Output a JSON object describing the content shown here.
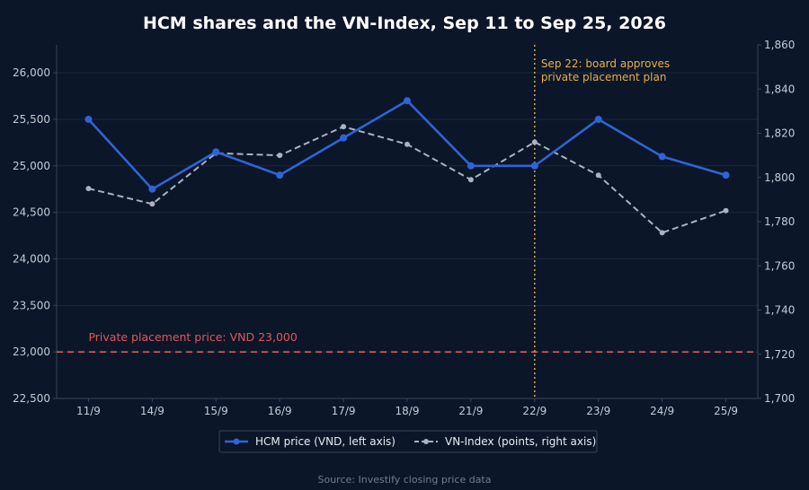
{
  "chart_data": {
    "type": "line",
    "title": "HCM shares and the VN-Index, Sep 11 to Sep 25, 2026",
    "categories": [
      "11/9",
      "14/9",
      "15/9",
      "16/9",
      "17/9",
      "18/9",
      "21/9",
      "22/9",
      "23/9",
      "24/9",
      "25/9"
    ],
    "y_left": {
      "min": 22500,
      "max": 26300,
      "ticks": [
        22500,
        23000,
        23500,
        24000,
        24500,
        25000,
        25500,
        26000
      ],
      "tick_labels": [
        "22,500",
        "23,000",
        "23,500",
        "24,000",
        "24,500",
        "25,000",
        "25,500",
        "26,000"
      ]
    },
    "y_right": {
      "min": 1700,
      "max": 1860,
      "ticks": [
        1700,
        1720,
        1740,
        1760,
        1780,
        1800,
        1820,
        1840,
        1860
      ],
      "tick_labels": [
        "1,700",
        "1,720",
        "1,740",
        "1,760",
        "1,780",
        "1,800",
        "1,820",
        "1,840",
        "1,860"
      ]
    },
    "series": [
      {
        "name": "HCM price (VND, left axis)",
        "axis": "left",
        "color": "#2f63d8",
        "style": "solid",
        "values": [
          25500,
          24750,
          25150,
          24900,
          25300,
          25700,
          25000,
          25000,
          25500,
          25100,
          24900
        ]
      },
      {
        "name": "VN-Index (points, right axis)",
        "axis": "right",
        "color": "#a9b3c1",
        "style": "dashed",
        "values": [
          1795,
          1788,
          1811,
          1810,
          1823,
          1815,
          1799,
          1816,
          1801,
          1775,
          1785
        ]
      }
    ],
    "reference_line": {
      "axis": "left",
      "value": 23000,
      "label": "Private placement price: VND 23,000",
      "color": "#e2565c"
    },
    "event_line": {
      "category": "22/9",
      "label_lines": [
        "Sep 22: board approves",
        "private placement plan"
      ],
      "color": "#e8b04a"
    },
    "legend": {
      "position": "bottom"
    },
    "grid": true,
    "source": "Source: Investify closing price data"
  }
}
